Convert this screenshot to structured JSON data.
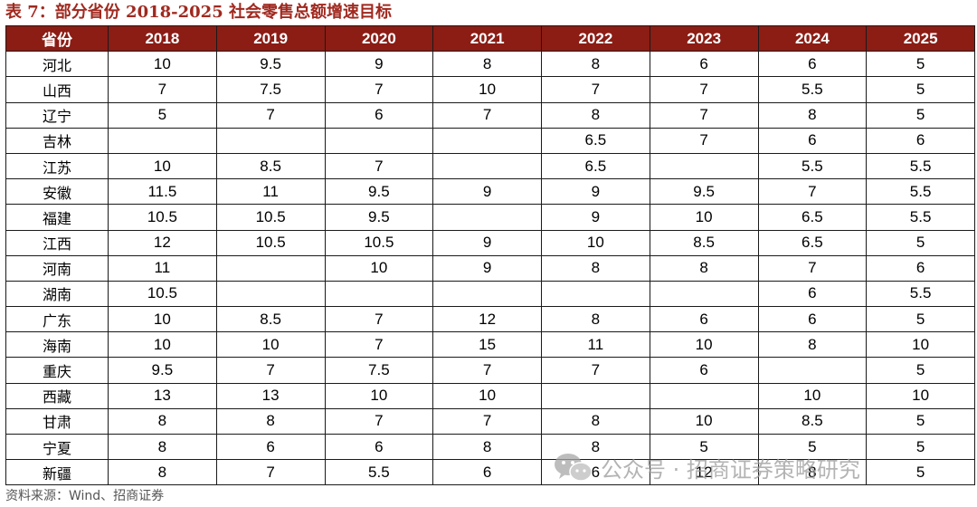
{
  "title": "表 7：部分省份 2018-2025 社会零售总额增速目标",
  "table": {
    "headers": [
      "省份",
      "2018",
      "2019",
      "2020",
      "2021",
      "2022",
      "2023",
      "2024",
      "2025"
    ],
    "rows": [
      [
        "河北",
        "10",
        "9.5",
        "9",
        "8",
        "8",
        "6",
        "6",
        "5"
      ],
      [
        "山西",
        "7",
        "7.5",
        "7",
        "10",
        "7",
        "7",
        "5.5",
        "5"
      ],
      [
        "辽宁",
        "5",
        "7",
        "6",
        "7",
        "8",
        "7",
        "8",
        "5"
      ],
      [
        "吉林",
        "",
        "",
        "",
        "",
        "6.5",
        "7",
        "6",
        "6"
      ],
      [
        "江苏",
        "10",
        "8.5",
        "7",
        "",
        "6.5",
        "",
        "5.5",
        "5.5"
      ],
      [
        "安徽",
        "11.5",
        "11",
        "9.5",
        "9",
        "9",
        "9.5",
        "7",
        "5.5"
      ],
      [
        "福建",
        "10.5",
        "10.5",
        "9.5",
        "",
        "9",
        "10",
        "6.5",
        "5.5"
      ],
      [
        "江西",
        "12",
        "10.5",
        "10.5",
        "9",
        "10",
        "8.5",
        "6.5",
        "5"
      ],
      [
        "河南",
        "11",
        "",
        "10",
        "9",
        "8",
        "8",
        "7",
        "6"
      ],
      [
        "湖南",
        "10.5",
        "",
        "",
        "",
        "",
        "",
        "6",
        "5.5"
      ],
      [
        "广东",
        "10",
        "8.5",
        "7",
        "12",
        "8",
        "6",
        "6",
        "5"
      ],
      [
        "海南",
        "10",
        "10",
        "7",
        "15",
        "11",
        "10",
        "8",
        "10"
      ],
      [
        "重庆",
        "9.5",
        "7",
        "7.5",
        "7",
        "7",
        "6",
        "",
        "5"
      ],
      [
        "西藏",
        "13",
        "13",
        "10",
        "10",
        "",
        "",
        "10",
        "10"
      ],
      [
        "甘肃",
        "8",
        "8",
        "7",
        "7",
        "8",
        "10",
        "8.5",
        "5"
      ],
      [
        "宁夏",
        "8",
        "6",
        "6",
        "8",
        "8",
        "5",
        "5",
        "5"
      ],
      [
        "新疆",
        "8",
        "7",
        "5.5",
        "6",
        "6",
        "12",
        "8",
        "5"
      ]
    ]
  },
  "source": "资料来源：Wind、招商证券",
  "watermark": {
    "text": "公众号 · 招商证券策略研究",
    "icon": "wechat-icon"
  },
  "colors": {
    "title": "#a0291f",
    "header_bg": "#8b1d15",
    "header_text": "#ffffff",
    "border": "#1a1a1a",
    "watermark": "#9a9a9a"
  }
}
